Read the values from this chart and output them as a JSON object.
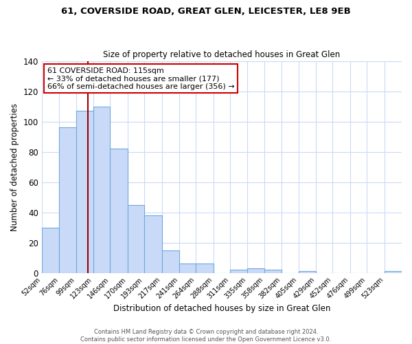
{
  "title": "61, COVERSIDE ROAD, GREAT GLEN, LEICESTER, LE8 9EB",
  "subtitle": "Size of property relative to detached houses in Great Glen",
  "xlabel": "Distribution of detached houses by size in Great Glen",
  "ylabel": "Number of detached properties",
  "bar_color": "#c9daf8",
  "bar_edge_color": "#6fa8dc",
  "bin_labels": [
    "52sqm",
    "76sqm",
    "99sqm",
    "123sqm",
    "146sqm",
    "170sqm",
    "193sqm",
    "217sqm",
    "241sqm",
    "264sqm",
    "288sqm",
    "311sqm",
    "335sqm",
    "358sqm",
    "382sqm",
    "405sqm",
    "429sqm",
    "452sqm",
    "476sqm",
    "499sqm",
    "523sqm"
  ],
  "bin_edges": [
    52,
    76,
    99,
    123,
    146,
    170,
    193,
    217,
    241,
    264,
    288,
    311,
    335,
    358,
    382,
    405,
    429,
    452,
    476,
    499,
    523,
    547
  ],
  "bar_heights": [
    30,
    96,
    107,
    110,
    82,
    45,
    38,
    15,
    6,
    6,
    0,
    2,
    3,
    2,
    0,
    1,
    0,
    0,
    0,
    0,
    1
  ],
  "ylim": [
    0,
    140
  ],
  "yticks": [
    0,
    20,
    40,
    60,
    80,
    100,
    120,
    140
  ],
  "property_line_x": 115,
  "property_line_color": "#990000",
  "annotation_text_line1": "61 COVERSIDE ROAD: 115sqm",
  "annotation_text_line2": "← 33% of detached houses are smaller (177)",
  "annotation_text_line3": "66% of semi-detached houses are larger (356) →",
  "annotation_box_color": "#ffffff",
  "annotation_box_edge_color": "#cc0000",
  "footer_line1": "Contains HM Land Registry data © Crown copyright and database right 2024.",
  "footer_line2": "Contains public sector information licensed under the Open Government Licence v3.0.",
  "background_color": "#ffffff",
  "grid_color": "#c9daf8"
}
